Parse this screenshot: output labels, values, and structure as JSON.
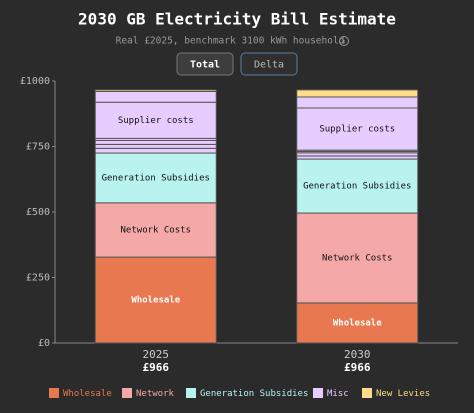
{
  "chart_data": {
    "type": "stacked_bar",
    "title": "2030 GB Electricity Bill Estimate",
    "subtitle": "Real £2025, benchmark 3100 kWh household",
    "buttons": [
      "Total",
      "Delta"
    ],
    "categories": [
      "2025",
      "2030"
    ],
    "totals": [
      966,
      966
    ],
    "total_labels": [
      "£966",
      "£966"
    ],
    "ylim": [
      0,
      1000
    ],
    "yticks": [
      {
        "value": 0,
        "label": "£0"
      },
      {
        "value": 250,
        "label": "£250"
      },
      {
        "value": 500,
        "label": "£500"
      },
      {
        "value": 750,
        "label": "£750"
      },
      {
        "value": 1000,
        "label": "£1000"
      }
    ],
    "series": [
      {
        "label": "Wholesale",
        "color": "#e8784f",
        "values": [
          328,
          153
        ]
      },
      {
        "label": "Network Costs",
        "color": "#f4a9a8",
        "values": [
          207,
          343
        ]
      },
      {
        "label": "Generation Subsidies",
        "color": "#b9f3ee",
        "values": [
          190,
          206
        ]
      },
      {
        "color": "#e6ccff",
        "values": [
          18,
          12
        ]
      },
      {
        "color": "#e6ccff",
        "values": [
          15,
          12
        ]
      },
      {
        "color": "#e6ccff",
        "values": [
          15,
          5
        ]
      },
      {
        "color": "#e6ccff",
        "values": [
          8,
          5
        ]
      },
      {
        "label": "Supplier costs",
        "color": "#e6ccff",
        "values": [
          138,
          161
        ]
      },
      {
        "color": "#e6ccff",
        "values": [
          41,
          42
        ]
      },
      {
        "color": "#ffdc8a",
        "values": [
          6,
          27
        ]
      }
    ],
    "legend": [
      {
        "name": "Wholesale",
        "color": "#e8784f"
      },
      {
        "name": "Network",
        "color": "#f4a9a8"
      },
      {
        "name": "Generation Subsidies",
        "color": "#b9f3ee"
      },
      {
        "name": "Misc",
        "color": "#e6ccff"
      },
      {
        "name": "New Levies",
        "color": "#ffdc8a"
      }
    ]
  }
}
